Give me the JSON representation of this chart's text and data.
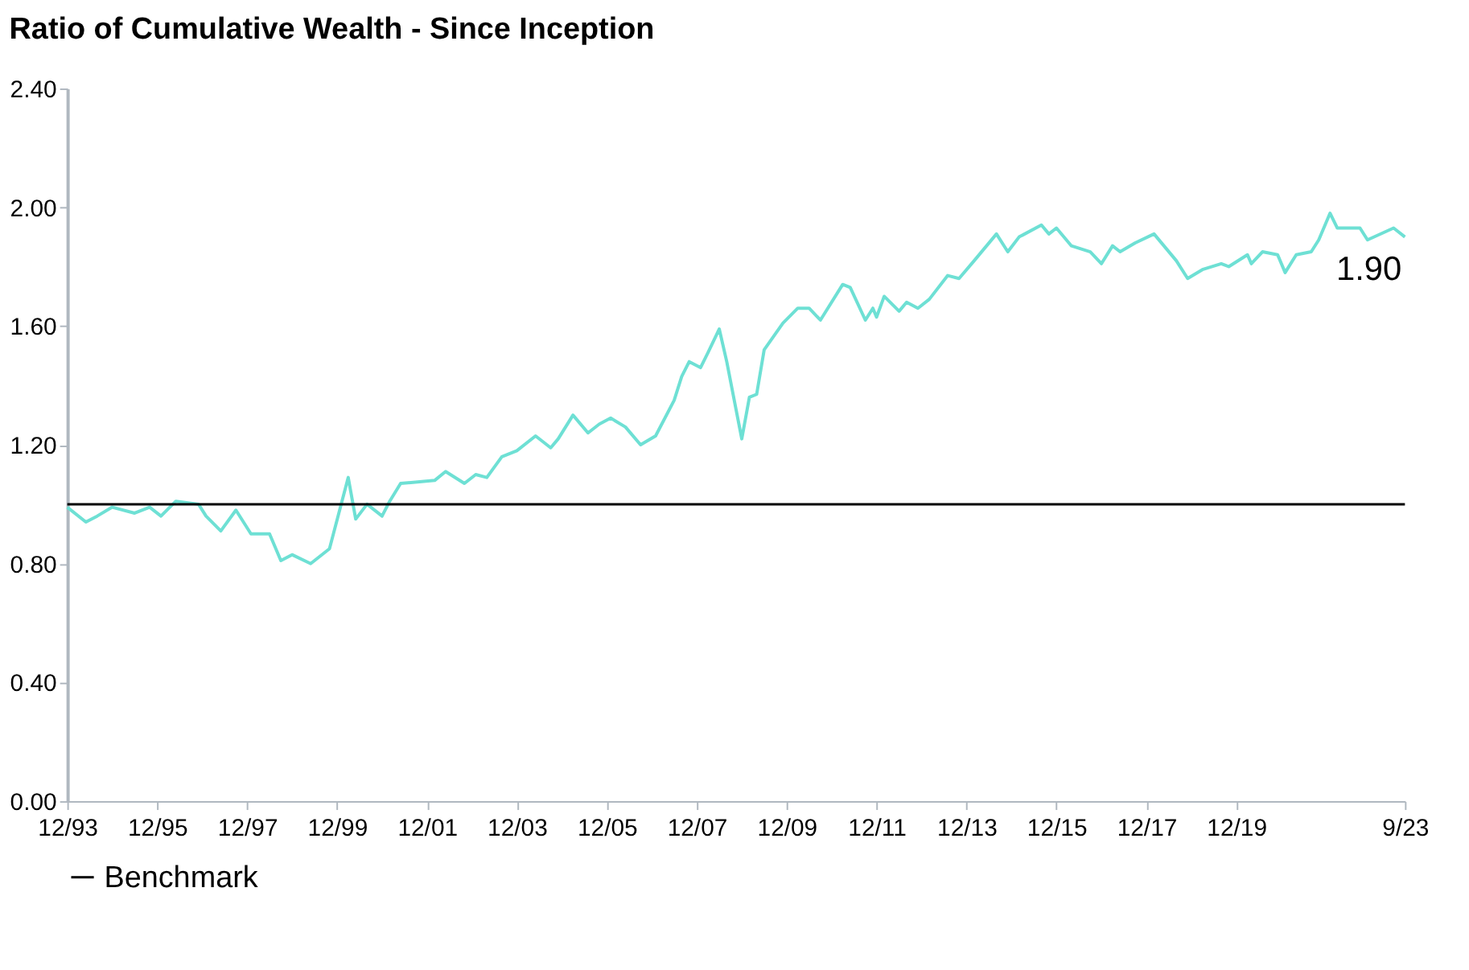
{
  "chart_data": {
    "type": "line",
    "title": "Ratio of Cumulative Wealth - Since Inception",
    "x": [
      "1993-12",
      "1994-05",
      "1994-08",
      "1994-12",
      "1995-06",
      "1995-10",
      "1996-01",
      "1996-05",
      "1996-11",
      "1997-01",
      "1997-05",
      "1997-09",
      "1998-01",
      "1998-06",
      "1998-09",
      "1998-12",
      "1999-05",
      "1999-10",
      "2000-03",
      "2000-05",
      "2000-08",
      "2000-12",
      "2001-02",
      "2001-05",
      "2002-02",
      "2002-05",
      "2002-10",
      "2003-01",
      "2003-04",
      "2003-08",
      "2003-12",
      "2004-05",
      "2004-09",
      "2004-11",
      "2005-03",
      "2005-07",
      "2005-10",
      "2006-01",
      "2006-05",
      "2006-09",
      "2007-01",
      "2007-06",
      "2007-08",
      "2007-10",
      "2008-01",
      "2008-03",
      "2008-06",
      "2008-08",
      "2008-12",
      "2009-02",
      "2009-04",
      "2009-06",
      "2009-11",
      "2010-03",
      "2010-06",
      "2010-09",
      "2011-03",
      "2011-05",
      "2011-09",
      "2011-11",
      "2011-12",
      "2012-02",
      "2012-06",
      "2012-08",
      "2012-11",
      "2013-02",
      "2013-07",
      "2013-10",
      "2014-02",
      "2014-08",
      "2014-11",
      "2015-02",
      "2015-08",
      "2015-10",
      "2015-12",
      "2016-04",
      "2016-09",
      "2016-12",
      "2017-03",
      "2017-05",
      "2017-09",
      "2018-02",
      "2018-08",
      "2018-11",
      "2019-03",
      "2019-08",
      "2019-10",
      "2020-03",
      "2020-04",
      "2020-07",
      "2020-11",
      "2021-01",
      "2021-04",
      "2021-08",
      "2021-10",
      "2022-01",
      "2022-03",
      "2022-09",
      "2022-11",
      "2023-06",
      "2023-09"
    ],
    "series": [
      {
        "color": "#6ee0d4",
        "values": [
          0.99,
          0.94,
          0.96,
          0.99,
          0.97,
          0.99,
          0.96,
          1.01,
          1.0,
          0.96,
          0.91,
          0.98,
          0.9,
          0.9,
          0.81,
          0.83,
          0.8,
          0.85,
          1.09,
          0.95,
          1.0,
          0.96,
          1.01,
          1.07,
          1.08,
          1.11,
          1.07,
          1.1,
          1.09,
          1.16,
          1.18,
          1.23,
          1.19,
          1.22,
          1.3,
          1.24,
          1.27,
          1.29,
          1.26,
          1.2,
          1.23,
          1.35,
          1.43,
          1.48,
          1.46,
          1.51,
          1.59,
          1.48,
          1.22,
          1.36,
          1.37,
          1.52,
          1.61,
          1.66,
          1.66,
          1.62,
          1.74,
          1.73,
          1.62,
          1.66,
          1.63,
          1.7,
          1.65,
          1.68,
          1.66,
          1.69,
          1.77,
          1.76,
          1.82,
          1.91,
          1.85,
          1.9,
          1.94,
          1.91,
          1.93,
          1.87,
          1.85,
          1.81,
          1.87,
          1.85,
          1.88,
          1.91,
          1.82,
          1.76,
          1.79,
          1.81,
          1.8,
          1.84,
          1.81,
          1.85,
          1.84,
          1.78,
          1.84,
          1.85,
          1.89,
          1.98,
          1.93,
          1.93,
          1.89,
          1.93,
          1.9
        ]
      }
    ],
    "xlim": [
      "1993-12",
      "2023-09"
    ],
    "xticks": [
      {
        "value": "1993-12",
        "label": "12/93"
      },
      {
        "value": "1995-12",
        "label": "12/95"
      },
      {
        "value": "1997-12",
        "label": "12/97"
      },
      {
        "value": "1999-12",
        "label": "12/99"
      },
      {
        "value": "2001-12",
        "label": "12/01"
      },
      {
        "value": "2003-12",
        "label": "12/03"
      },
      {
        "value": "2005-12",
        "label": "12/05"
      },
      {
        "value": "2007-12",
        "label": "12/07"
      },
      {
        "value": "2009-12",
        "label": "12/09"
      },
      {
        "value": "2011-12",
        "label": "12/11"
      },
      {
        "value": "2013-12",
        "label": "12/13"
      },
      {
        "value": "2015-12",
        "label": "12/15"
      },
      {
        "value": "2017-12",
        "label": "12/17"
      },
      {
        "value": "2019-12",
        "label": "12/19"
      },
      {
        "value": "2023-09",
        "label": "9/23"
      }
    ],
    "ylim": [
      0,
      2.4
    ],
    "yticks": [
      {
        "value": 0,
        "label": "0.00"
      },
      {
        "value": 0.4,
        "label": "0.40"
      },
      {
        "value": 0.8,
        "label": "0.80"
      },
      {
        "value": 1.2,
        "label": "1.20"
      },
      {
        "value": 1.6,
        "label": "1.60"
      },
      {
        "value": 2.0,
        "label": "2.00"
      },
      {
        "value": 2.4,
        "label": "2.40"
      }
    ],
    "ref_lines": [
      {
        "axis": "y",
        "value": 1.0,
        "label": "Benchmark",
        "color": "#000000"
      }
    ],
    "annotations": [
      {
        "text": "1.90",
        "x": "2023-09",
        "y": 1.9
      }
    ],
    "grid": false,
    "legend": "bottom",
    "marker": "none",
    "line_style": "solid"
  }
}
